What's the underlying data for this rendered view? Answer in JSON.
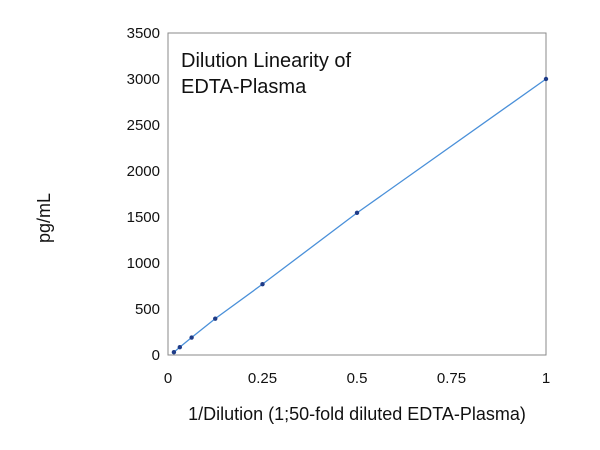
{
  "chart_data": {
    "type": "line",
    "title_lines": [
      "Dilution Linearity of",
      "EDTA-Plasma"
    ],
    "xlabel": "1/Dilution (1;50-fold diluted EDTA-Plasma)",
    "ylabel": "pg/mL",
    "xlim": [
      0,
      1
    ],
    "ylim": [
      0,
      3500
    ],
    "x_ticks": [
      0,
      0.25,
      0.5,
      0.75,
      1
    ],
    "x_tick_labels": [
      "0",
      "0.25",
      "0.5",
      "0.75",
      "1"
    ],
    "y_ticks": [
      0,
      500,
      1000,
      1500,
      2000,
      2500,
      3000,
      3500
    ],
    "y_tick_labels": [
      "0",
      "500",
      "1000",
      "1500",
      "2000",
      "2500",
      "3000",
      "3500"
    ],
    "grid": false,
    "legend": "none",
    "series": [
      {
        "x": [
          0.015625,
          0.03125,
          0.0625,
          0.125,
          0.25,
          0.5,
          1
        ],
        "y": [
          30,
          85,
          190,
          395,
          770,
          1545,
          3000
        ],
        "line_color": "#4a90d9",
        "marker_color": "#1f3c88"
      }
    ]
  }
}
